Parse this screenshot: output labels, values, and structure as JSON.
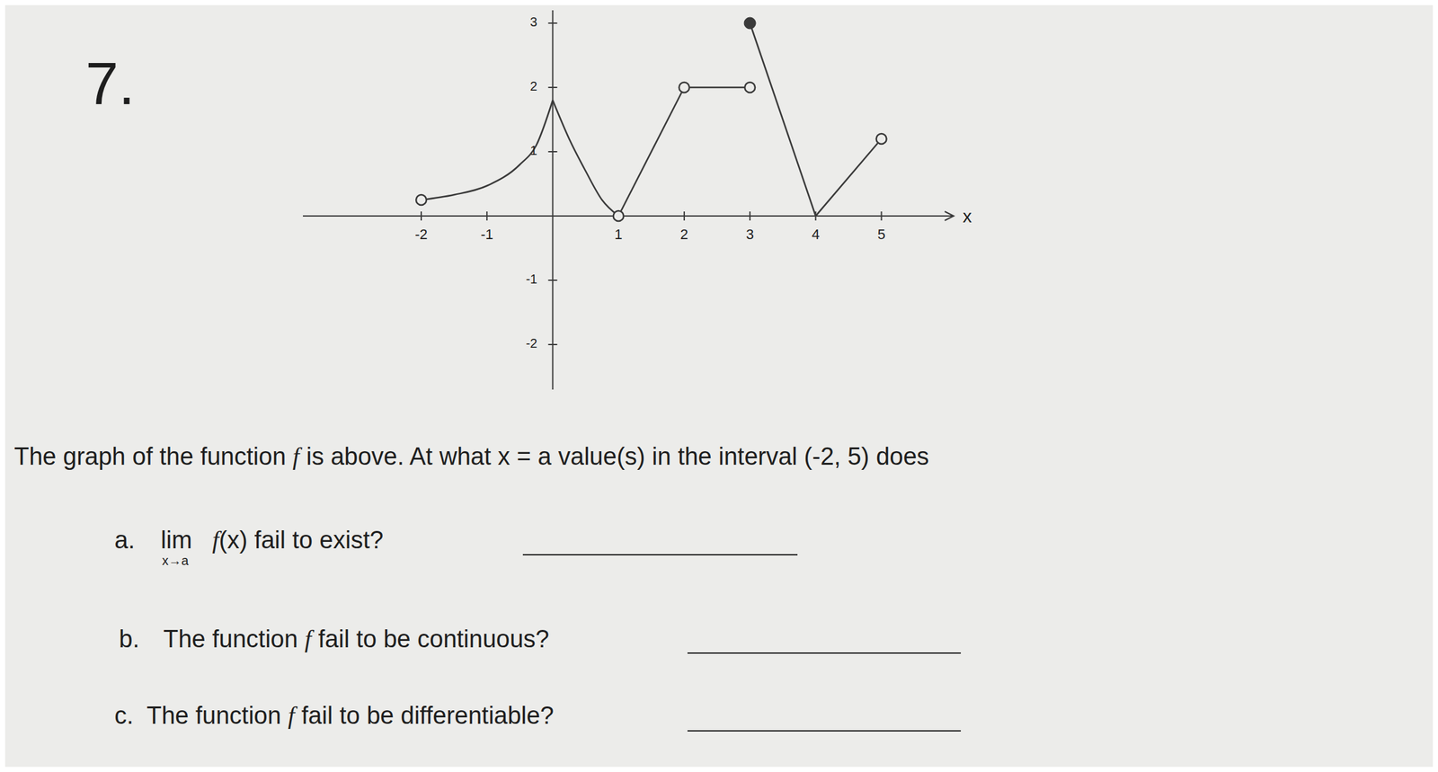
{
  "problem": "7.",
  "chart_data": {
    "type": "line",
    "xlim": [
      -3.8,
      6.1
    ],
    "ylim": [
      -2.7,
      3.2
    ],
    "xticks": [
      -2,
      -1,
      1,
      2,
      3,
      4,
      5
    ],
    "yticks": [
      -2,
      -1,
      1,
      2,
      3
    ],
    "xlabel": "x",
    "grid": false,
    "color": "#3a3a3a",
    "pieces": [
      {
        "x": [
          -2,
          -1.5,
          -1,
          -0.5,
          -0.25,
          0
        ],
        "y": [
          0.25,
          0.33,
          0.47,
          0.8,
          1.1,
          1.8
        ]
      },
      {
        "x": [
          0,
          0.25,
          0.5,
          0.75,
          1
        ],
        "y": [
          1.8,
          1.2,
          0.7,
          0.25,
          0
        ]
      },
      {
        "x": [
          1,
          2
        ],
        "y": [
          0,
          2
        ]
      },
      {
        "x": [
          2,
          3
        ],
        "y": [
          2,
          2
        ]
      },
      {
        "x": [
          3,
          4
        ],
        "y": [
          3,
          0
        ]
      },
      {
        "x": [
          4,
          5
        ],
        "y": [
          0,
          1.2
        ]
      }
    ],
    "open_points": {
      "x": [
        -2,
        1,
        2,
        3,
        5
      ],
      "y": [
        0.25,
        0,
        2,
        2,
        1.2
      ]
    },
    "closed_points": {
      "x": [
        3
      ],
      "y": [
        3
      ]
    }
  },
  "prompt": "The graph of the function f is above. At what x = a value(s) in the interval (-2, 5) does",
  "questions": [
    {
      "label": "a.",
      "limit": "lim",
      "limit_sub": "x→a",
      "text": "f(x) fail to exist?"
    },
    {
      "label": "b.",
      "text": "The function f fail to be continuous?"
    },
    {
      "label": "c.",
      "text": "The function f fail to be differentiable?"
    }
  ]
}
